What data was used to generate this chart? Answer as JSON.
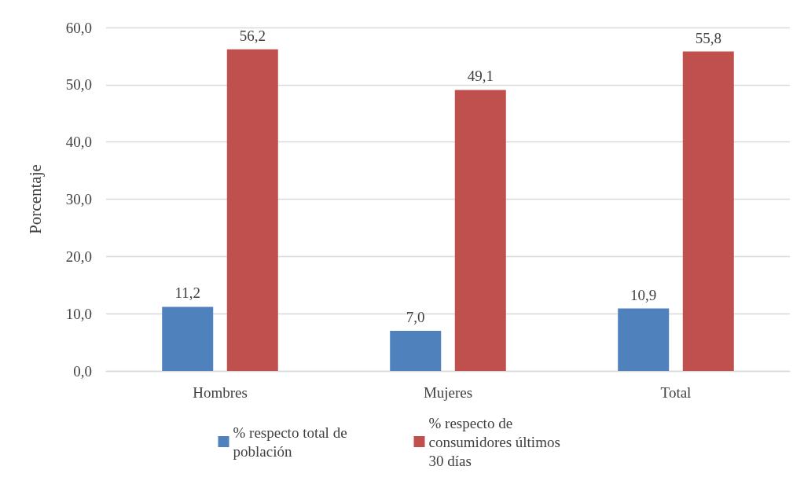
{
  "chart_data": {
    "type": "bar",
    "ylabel": "Porcentaje",
    "categories": [
      "Hombres",
      "Mujeres",
      "Total"
    ],
    "series": [
      {
        "name": "% respecto total de población",
        "color": "#4f81bd",
        "values": [
          11.2,
          7.0,
          10.9
        ],
        "value_labels": [
          "11,2",
          "7,0",
          "10,9"
        ]
      },
      {
        "name": "% respecto de consumidores últimos 30 días",
        "color": "#c0504d",
        "values": [
          56.2,
          49.1,
          55.8
        ],
        "value_labels": [
          "56,2",
          "49,1",
          "55,8"
        ]
      }
    ],
    "ylim": [
      0,
      60
    ],
    "yticks": [
      {
        "value": 0,
        "label": "0,0"
      },
      {
        "value": 10,
        "label": "10,0"
      },
      {
        "value": 20,
        "label": "20,0"
      },
      {
        "value": 30,
        "label": "30,0"
      },
      {
        "value": 40,
        "label": "40,0"
      },
      {
        "value": 50,
        "label": "50,0"
      },
      {
        "value": 60,
        "label": "60,0"
      }
    ],
    "grid": "y",
    "legend": "bottom"
  }
}
